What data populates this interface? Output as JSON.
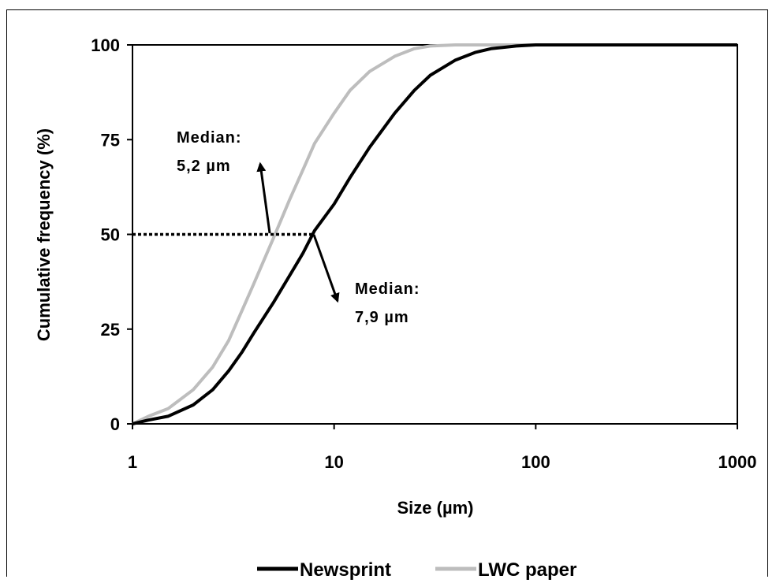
{
  "chart_data": {
    "type": "line",
    "title": "",
    "xlabel": "Size (µm)",
    "ylabel": "Cumulative frequency (%)",
    "xscale": "log",
    "xlim": [
      1,
      1000
    ],
    "ylim": [
      0,
      100
    ],
    "xticks": [
      "1",
      "10",
      "100",
      "1000"
    ],
    "yticks": [
      "0",
      "25",
      "50",
      "75",
      "100"
    ],
    "grid": false,
    "legend": "bottom",
    "series": [
      {
        "name": "Newsprint",
        "color": "#000000",
        "x": [
          1,
          1.2,
          1.5,
          2,
          2.5,
          3,
          3.5,
          4,
          5,
          6,
          7,
          8,
          10,
          12,
          15,
          20,
          25,
          30,
          40,
          50,
          60,
          80,
          100,
          150,
          1000
        ],
        "y": [
          0,
          1,
          2,
          5,
          9,
          14,
          19,
          24,
          32,
          39,
          45,
          51,
          58,
          65,
          73,
          82,
          88,
          92,
          96,
          98,
          99,
          99.7,
          100,
          100,
          100
        ]
      },
      {
        "name": "LWC paper",
        "color": "#bdbdbd",
        "x": [
          1,
          1.2,
          1.5,
          2,
          2.5,
          3,
          3.5,
          4,
          5,
          6,
          7,
          8,
          10,
          12,
          15,
          20,
          25,
          30,
          40,
          60,
          1000
        ],
        "y": [
          0,
          2,
          4,
          9,
          15,
          22,
          30,
          37,
          49,
          59,
          67,
          74,
          82,
          88,
          93,
          97,
          99,
          99.7,
          100,
          100,
          100
        ]
      }
    ],
    "annotations": [
      {
        "text_line1": "Median:",
        "text_line2": "5,2 µm",
        "x": 5.2,
        "y": 50
      },
      {
        "text_line1": "Median:",
        "text_line2": "7,9 µm",
        "x": 7.9,
        "y": 50
      }
    ],
    "median_line": {
      "x_start": 1,
      "x_end": 7.9,
      "y": 50
    }
  }
}
